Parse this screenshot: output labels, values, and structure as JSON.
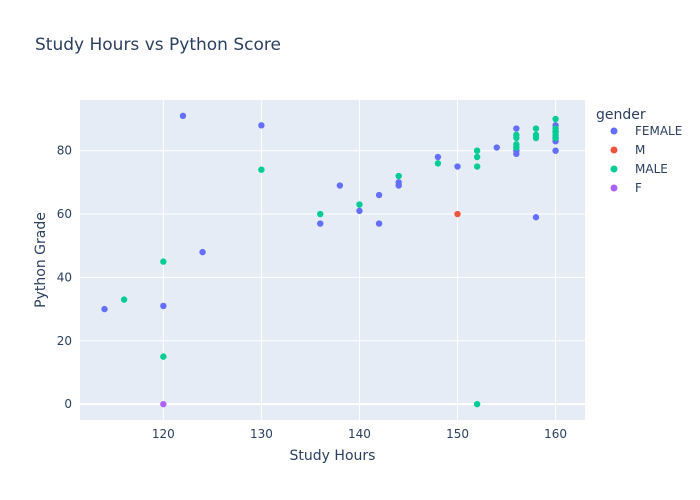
{
  "colors": {
    "plot_bg": "#E5ECF6",
    "grid": "#ffffff",
    "text": "#2a3f5f"
  },
  "chart_data": {
    "type": "scatter",
    "title": "Study Hours vs Python Score",
    "xlabel": "Study Hours",
    "ylabel": "Python Grade",
    "xlim": [
      111.5,
      163
    ],
    "ylim": [
      -5,
      96
    ],
    "x_ticks": [
      120,
      130,
      140,
      150,
      160
    ],
    "y_ticks": [
      0,
      20,
      40,
      60,
      80
    ],
    "grid": true,
    "legend": {
      "title": "gender",
      "placement": "right"
    },
    "series": [
      {
        "name": "FEMALE",
        "color": "#636efa",
        "points": [
          [
            114,
            30
          ],
          [
            120,
            31
          ],
          [
            122,
            91
          ],
          [
            124,
            48
          ],
          [
            130,
            88
          ],
          [
            136,
            57
          ],
          [
            138,
            69
          ],
          [
            140,
            61
          ],
          [
            142,
            66
          ],
          [
            142,
            57
          ],
          [
            144,
            70
          ],
          [
            144,
            69
          ],
          [
            148,
            78
          ],
          [
            150,
            75
          ],
          [
            154,
            81
          ],
          [
            156,
            87
          ],
          [
            156,
            80
          ],
          [
            156,
            79
          ],
          [
            158,
            59
          ],
          [
            160,
            80
          ],
          [
            160,
            83
          ],
          [
            160,
            84
          ],
          [
            160,
            86
          ],
          [
            160,
            88
          ]
        ]
      },
      {
        "name": "M",
        "color": "#EF553B",
        "points": [
          [
            150,
            60
          ]
        ]
      },
      {
        "name": "MALE",
        "color": "#00cc96",
        "points": [
          [
            116,
            33
          ],
          [
            120,
            45
          ],
          [
            120,
            15
          ],
          [
            130,
            74
          ],
          [
            136,
            60
          ],
          [
            140,
            63
          ],
          [
            144,
            72
          ],
          [
            148,
            76
          ],
          [
            152,
            80
          ],
          [
            152,
            78
          ],
          [
            152,
            75
          ],
          [
            152,
            0
          ],
          [
            156,
            85
          ],
          [
            156,
            84
          ],
          [
            156,
            82
          ],
          [
            156,
            81
          ],
          [
            158,
            87
          ],
          [
            158,
            85
          ],
          [
            158,
            84
          ],
          [
            160,
            90
          ],
          [
            160,
            87
          ],
          [
            160,
            86
          ],
          [
            160,
            85
          ],
          [
            160,
            84
          ]
        ]
      },
      {
        "name": "F",
        "color": "#ab63fa",
        "points": [
          [
            120,
            0
          ]
        ]
      }
    ]
  }
}
